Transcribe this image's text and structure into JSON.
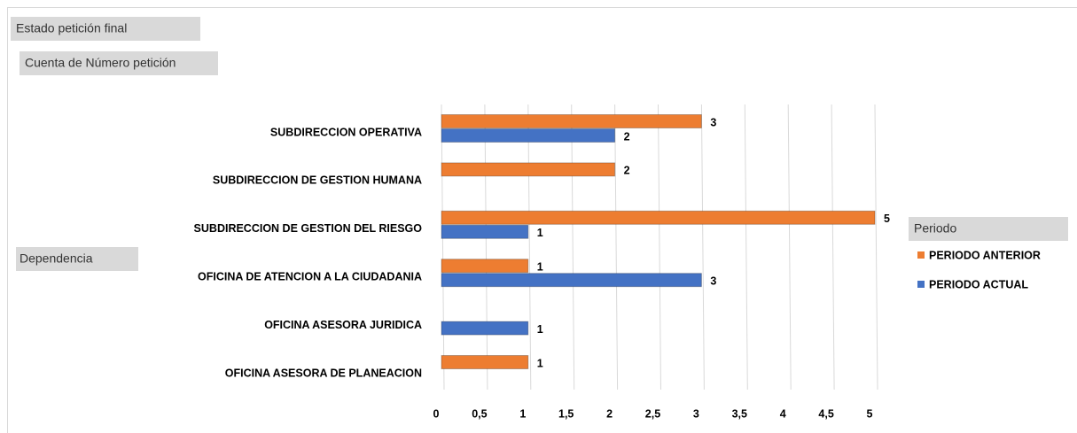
{
  "chart_data": {
    "type": "bar",
    "orientation": "horizontal",
    "filter_button": "Estado petición final",
    "value_button": "Cuenta de Número petición",
    "axis_button": "Dependencia",
    "legend_title": "Periodo",
    "categories": [
      "SUBDIRECCION OPERATIVA",
      "SUBDIRECCION DE GESTION HUMANA",
      "SUBDIRECCION DE GESTION DEL RIESGO",
      "OFICINA DE ATENCION A LA CIUDADANIA",
      "OFICINA ASESORA JURIDICA",
      "OFICINA ASESORA DE PLANEACION"
    ],
    "series": [
      {
        "name": "PERIODO ANTERIOR",
        "color": "#ed7d31",
        "values": [
          3,
          2,
          5,
          1,
          null,
          1
        ]
      },
      {
        "name": "PERIODO ACTUAL",
        "color": "#4472c4",
        "values": [
          2,
          null,
          1,
          3,
          1,
          null
        ]
      }
    ],
    "xlim": [
      0,
      5
    ],
    "xticks": [
      0,
      {
        "value": 0.5,
        "label": "0,5"
      },
      1,
      {
        "value": 1.5,
        "label": "1,5"
      },
      2,
      {
        "value": 2.5,
        "label": "2,5"
      },
      3,
      {
        "value": 3.5,
        "label": "3,5"
      },
      4,
      {
        "value": 4.5,
        "label": "4,5"
      },
      5
    ],
    "grid": true,
    "legend": "right"
  }
}
